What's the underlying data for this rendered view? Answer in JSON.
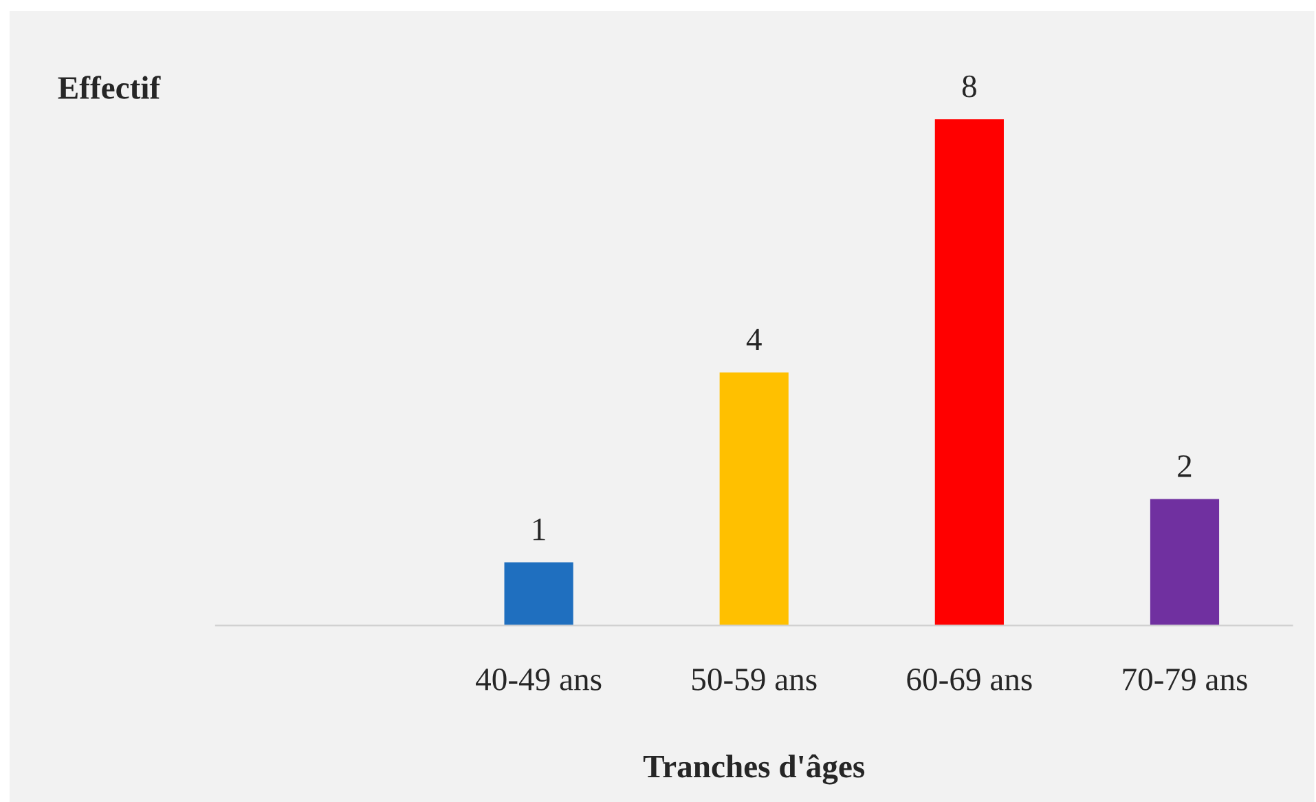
{
  "chart_data": {
    "type": "bar",
    "ylabel": "Effectif",
    "xlabel": "Tranches d'âges",
    "categories": [
      null,
      "40-49 ans",
      "50-59 ans",
      "60-69 ans",
      "70-79 ans"
    ],
    "values": [
      null,
      1,
      4,
      8,
      2
    ],
    "colors": [
      "#1f6fbf",
      "#1f6fbf",
      "#ffc000",
      "#ff0000",
      "#7030a0"
    ],
    "data_labels": true,
    "grid": false,
    "legend": false
  }
}
